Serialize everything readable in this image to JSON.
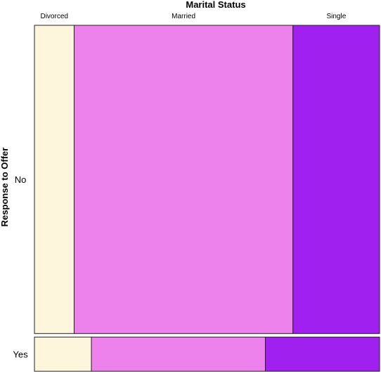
{
  "chart_data": {
    "type": "mosaic",
    "title": "Marital Status",
    "ylabel": "Response to Offer",
    "columns": [
      "Divorced",
      "Married",
      "Single"
    ],
    "rows": [
      "No",
      "Yes"
    ],
    "row_shares": {
      "No": 0.9,
      "Yes": 0.1
    },
    "column_shares_within_row": {
      "No": [
        0.115,
        0.634,
        0.251
      ],
      "Yes": [
        0.165,
        0.504,
        0.331
      ]
    },
    "colors": {
      "Divorced": "#fdf5dc",
      "Married": "#ed82ed",
      "Single": "#a020f0"
    }
  }
}
